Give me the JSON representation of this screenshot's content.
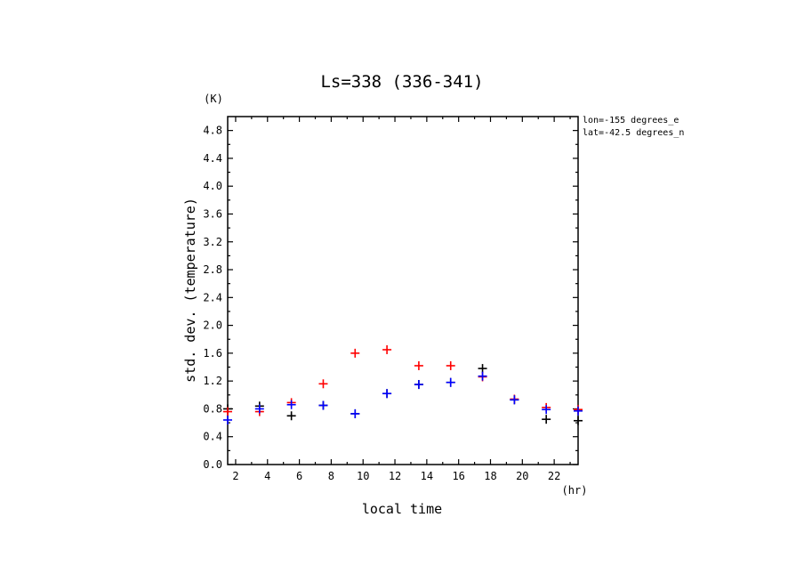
{
  "chart_data": {
    "type": "scatter",
    "title": "Ls=338 (336-341)",
    "xlabel": "local time",
    "ylabel": "std. dev. (temperature)",
    "x_unit": "(hr)",
    "y_unit": "(K)",
    "xlim": [
      1.5,
      23.5
    ],
    "ylim": [
      0.0,
      5.0
    ],
    "x_ticks": [
      2,
      4,
      6,
      8,
      10,
      12,
      14,
      16,
      18,
      20,
      22
    ],
    "y_ticks": [
      0.0,
      0.4,
      0.8,
      1.2,
      1.6,
      2.0,
      2.4,
      2.8,
      3.2,
      3.6,
      4.0,
      4.4,
      4.8
    ],
    "y_tick_labels": [
      "0.0",
      "0.4",
      "0.8",
      "1.2",
      "1.6",
      "2.0",
      "2.4",
      "2.8",
      "3.2",
      "3.6",
      "4.0",
      "4.4",
      "4.8"
    ],
    "grid": false,
    "marker": "+",
    "annotations": [
      "lon=-155 degrees_e",
      "lat=-42.5 degrees_n"
    ],
    "series": [
      {
        "color": "#000000",
        "x": [
          1.5,
          3.5,
          5.5,
          7.5,
          9.5,
          11.5,
          13.5,
          15.5,
          17.5,
          19.5,
          21.5,
          23.5
        ],
        "values": [
          0.8,
          0.84,
          0.7,
          0.85,
          0.73,
          1.02,
          1.15,
          1.18,
          1.38,
          0.93,
          0.65,
          0.63
        ]
      },
      {
        "color": "#ff0000",
        "x": [
          1.5,
          3.5,
          5.5,
          7.5,
          9.5,
          11.5,
          13.5,
          15.5,
          17.5,
          19.5,
          21.5,
          23.5
        ],
        "values": [
          0.76,
          0.76,
          0.89,
          1.16,
          1.6,
          1.65,
          1.42,
          1.42,
          1.26,
          0.94,
          0.82,
          0.79
        ]
      },
      {
        "color": "#0000ff",
        "x": [
          1.5,
          3.5,
          5.5,
          7.5,
          9.5,
          11.5,
          13.5,
          15.5,
          17.5,
          19.5,
          21.5,
          23.5
        ],
        "values": [
          0.64,
          0.8,
          0.86,
          0.85,
          0.73,
          1.02,
          1.15,
          1.18,
          1.27,
          0.93,
          0.79,
          0.77
        ]
      }
    ]
  }
}
